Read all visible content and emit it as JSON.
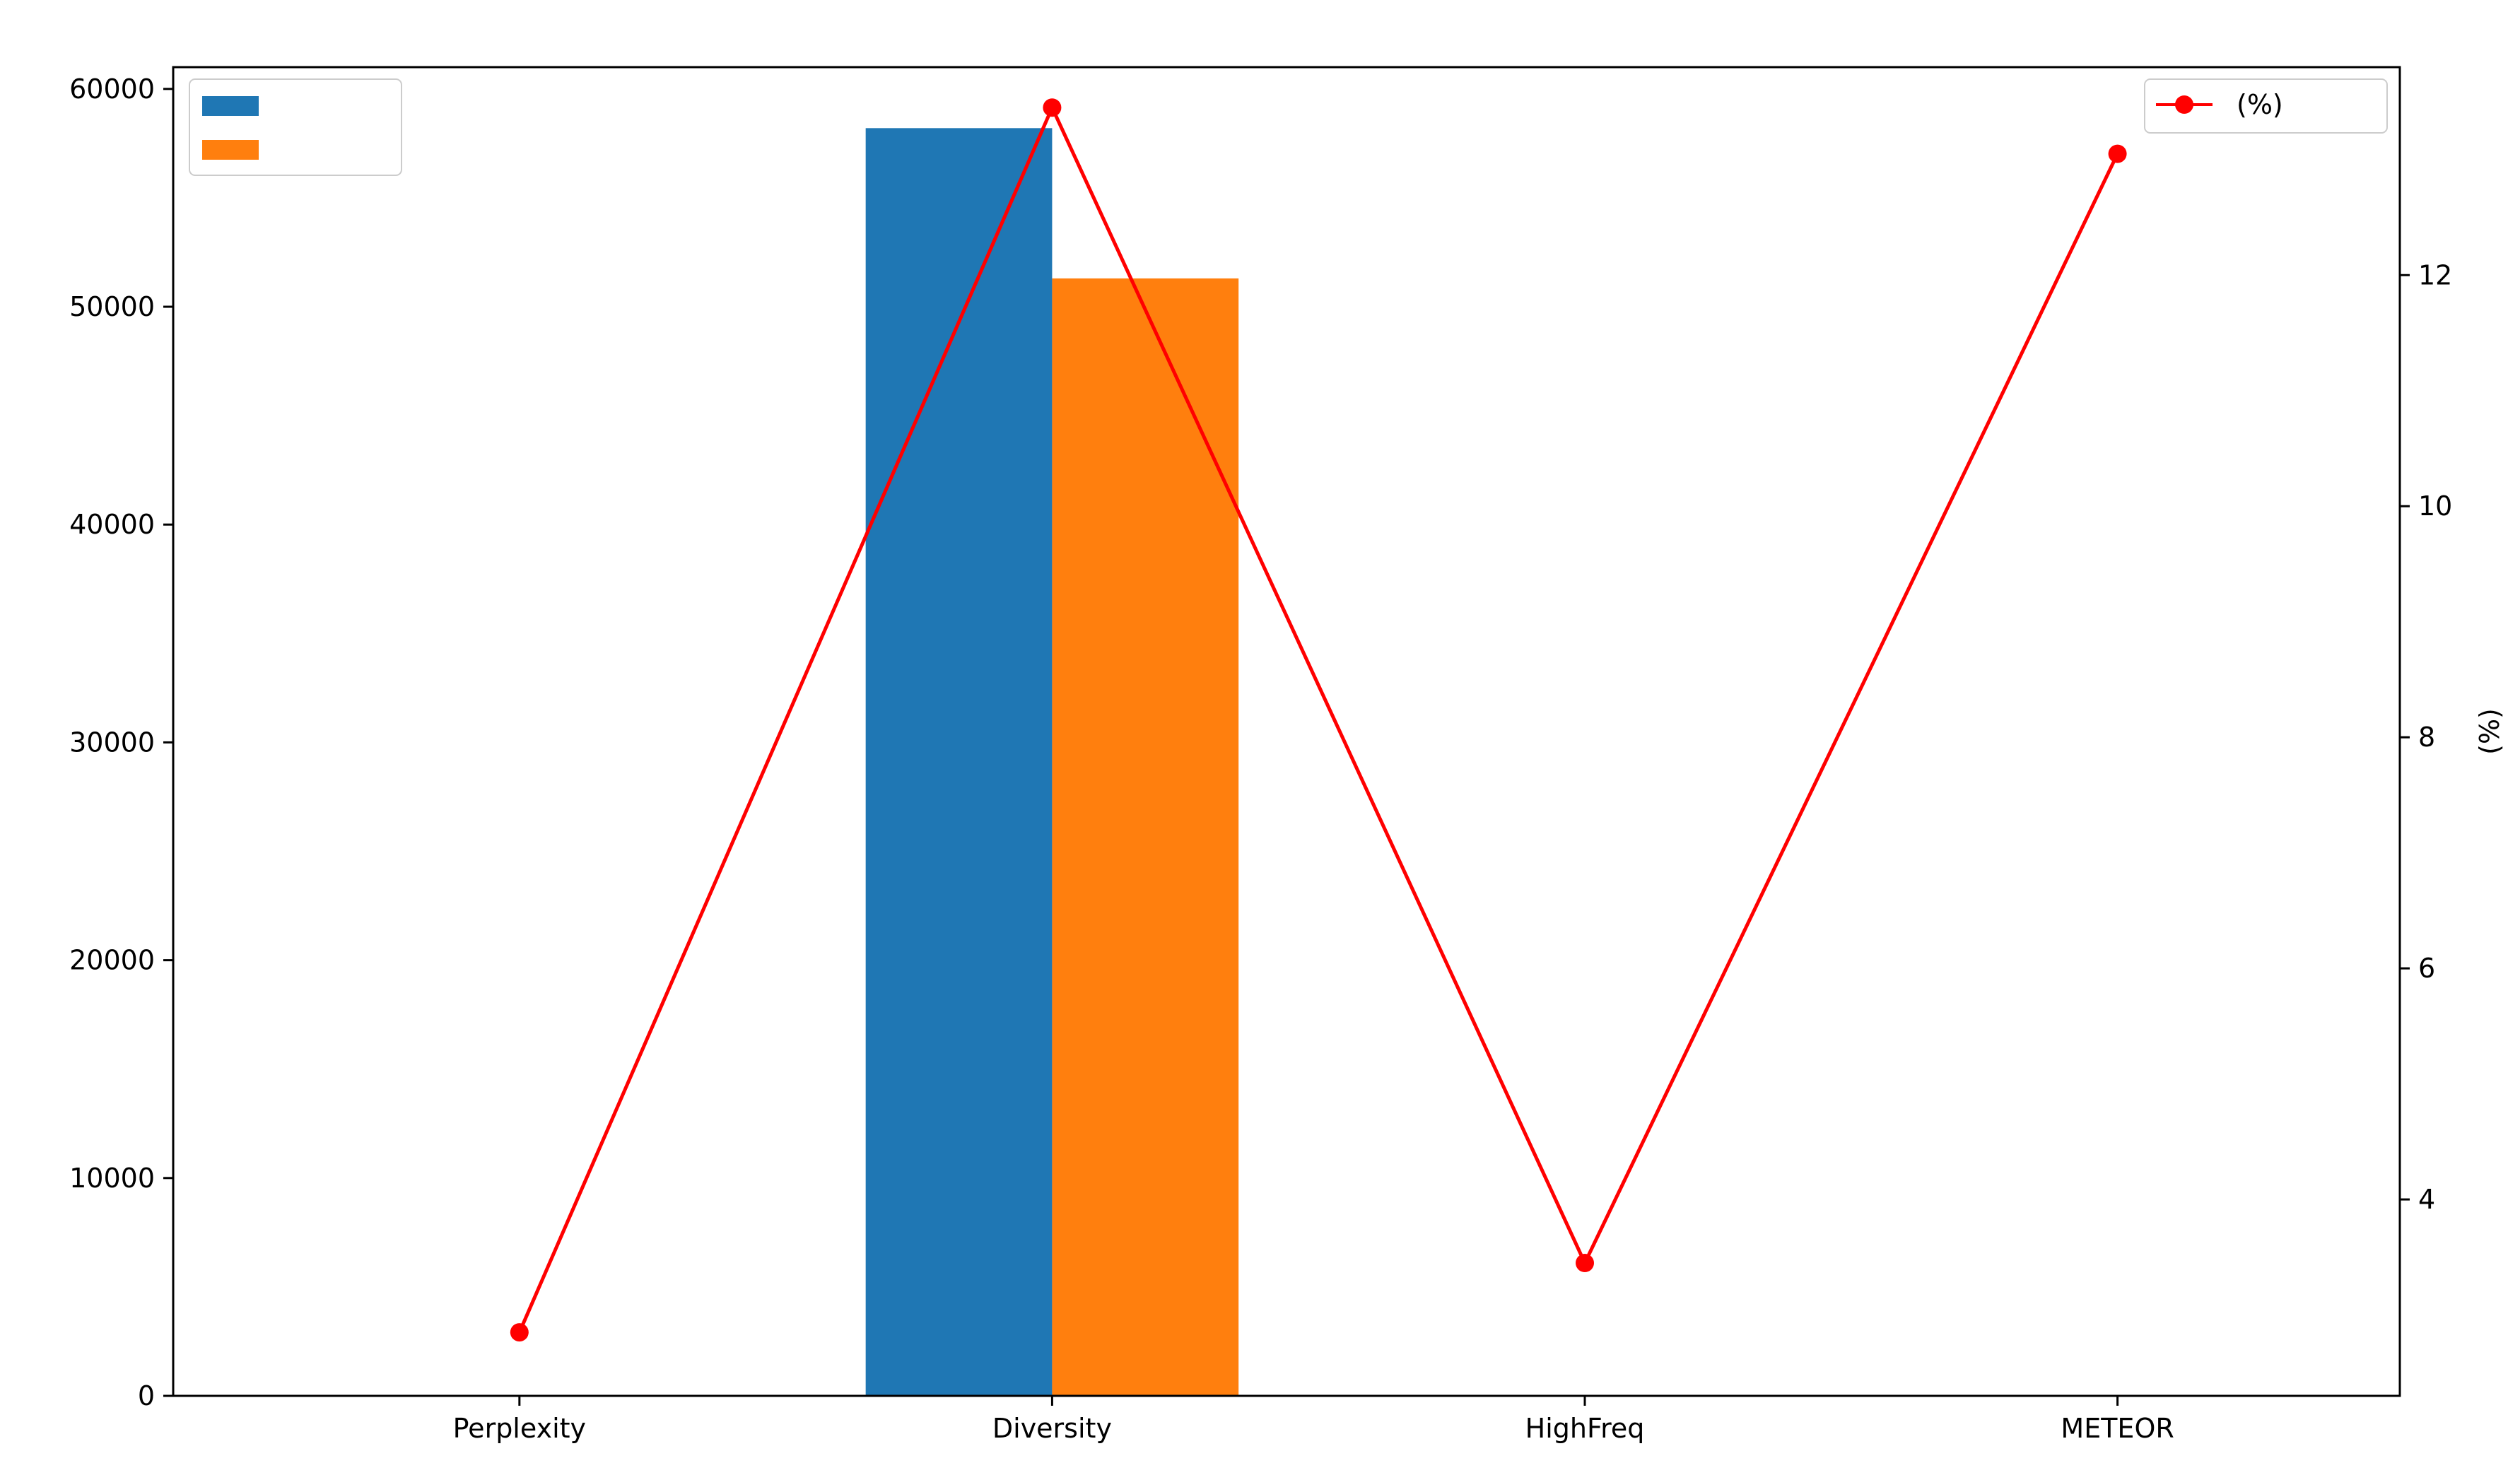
{
  "chart_data": {
    "type": "bar",
    "title": "",
    "xlabel": "",
    "ylabel": "",
    "y2label": "(%)",
    "categories": [
      "Perplexity",
      "Diversity",
      "HighFreq",
      "METEOR"
    ],
    "ylim": [
      0,
      61000
    ],
    "y2lim": [
      2.3,
      13.8
    ],
    "yticks": [
      0,
      10000,
      20000,
      30000,
      40000,
      50000,
      60000
    ],
    "y2ticks": [
      4,
      6,
      8,
      10,
      12
    ],
    "grid": false,
    "bar_series": [
      {
        "name": "",
        "color": "#1f77b4",
        "values": [
          38,
          58200,
          0,
          0
        ]
      },
      {
        "name": "",
        "color": "#ff7f0e",
        "values": [
          37,
          51300,
          0,
          0
        ]
      }
    ],
    "line_series": {
      "name": "(%)",
      "color": "#ff0000",
      "axis": "right",
      "values": [
        2.85,
        13.45,
        3.45,
        13.05
      ]
    },
    "legend_left": "top-left",
    "legend_right": "top-right"
  }
}
